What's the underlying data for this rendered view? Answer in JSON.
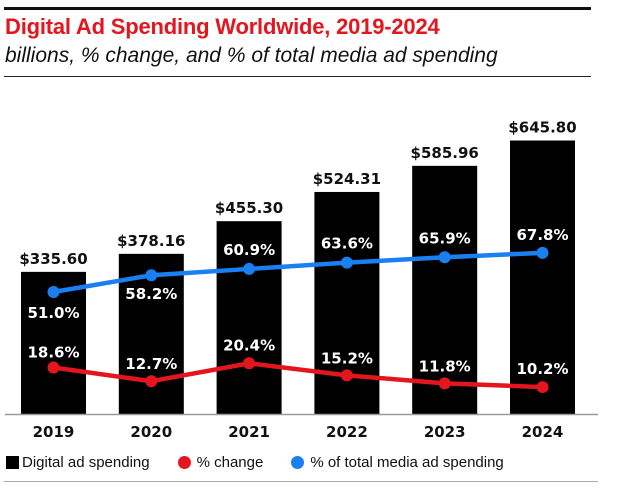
{
  "header": {
    "title": "Digital Ad Spending Worldwide, 2019-2024",
    "subtitle": "billions, % change, and % of total media ad spending"
  },
  "colors": {
    "title": "#e3161e",
    "bars": "#000000",
    "change_line": "#e3161e",
    "share_line": "#1a7ff0"
  },
  "legend": [
    {
      "label": "Digital ad spending",
      "marker": "square-icon"
    },
    {
      "label": "% change",
      "marker": "red-dot-icon"
    },
    {
      "label": "% of total media ad spending",
      "marker": "blue-dot-icon"
    }
  ],
  "chart_data": {
    "type": "bar",
    "title": "Digital Ad Spending Worldwide, 2019-2024",
    "subtitle": "billions, % change, and % of total media ad spending",
    "xlabel": "",
    "ylabel": "",
    "categories": [
      "2019",
      "2020",
      "2021",
      "2022",
      "2023",
      "2024"
    ],
    "grid": false,
    "legend_position": "bottom",
    "series": [
      {
        "name": "Digital ad spending",
        "type": "bar",
        "unit": "billions",
        "values": [
          335.6,
          378.16,
          455.3,
          524.31,
          585.96,
          645.8
        ],
        "labels": [
          "$335.60",
          "$378.16",
          "$455.30",
          "$524.31",
          "$585.96",
          "$645.80"
        ],
        "ylim": [
          0,
          700
        ]
      },
      {
        "name": "% change",
        "type": "line",
        "values": [
          18.6,
          12.7,
          20.4,
          15.2,
          11.8,
          10.2
        ],
        "labels": [
          "18.6%",
          "12.7%",
          "20.4%",
          "15.2%",
          "11.8%",
          "10.2%"
        ]
      },
      {
        "name": "% of total media ad spending",
        "type": "line",
        "values": [
          51.0,
          58.2,
          60.9,
          63.6,
          65.9,
          67.8
        ],
        "labels": [
          "51.0%",
          "58.2%",
          "60.9%",
          "63.6%",
          "65.9%",
          "67.8%"
        ]
      }
    ]
  }
}
